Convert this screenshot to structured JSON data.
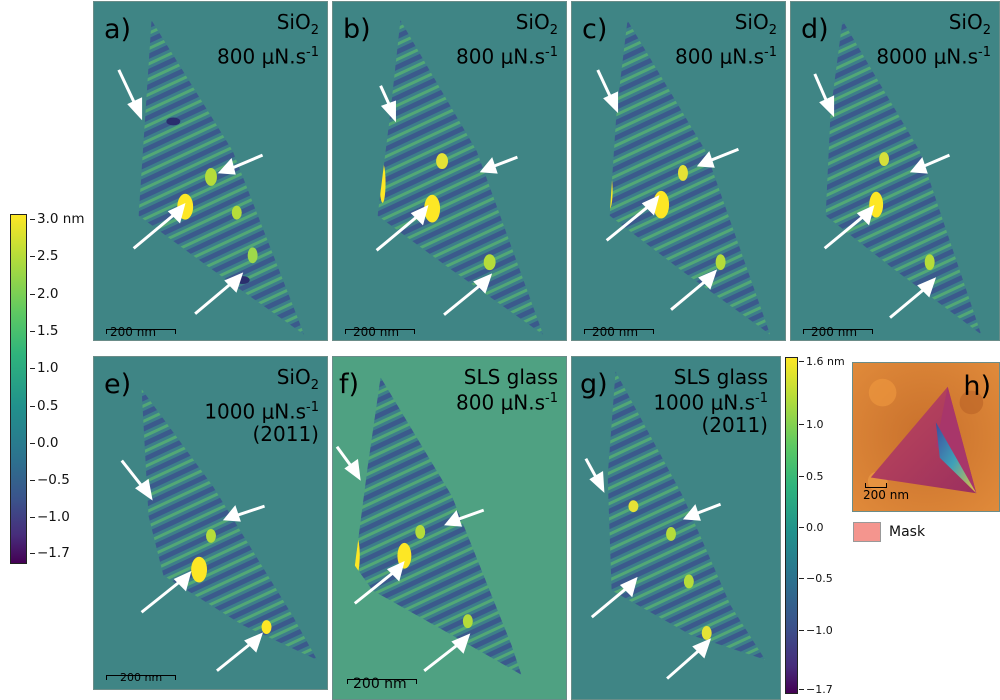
{
  "panels": [
    {
      "id": "a",
      "label": "a)",
      "line1": "SiO2",
      "sub": "2",
      "line1main": "SiO",
      "line2": "800 μN.s",
      "sup": "-1",
      "line3": "",
      "scale": "200 nm"
    },
    {
      "id": "b",
      "label": "b)",
      "line1main": "SiO",
      "sub": "2",
      "line2": "800 μN.s",
      "sup": "-1",
      "line3": "",
      "scale": "200 nm"
    },
    {
      "id": "c",
      "label": "c)",
      "line1main": "SiO",
      "sub": "2",
      "line2": "800 μN.s",
      "sup": "-1",
      "line3": "",
      "scale": "200 nm"
    },
    {
      "id": "d",
      "label": "d)",
      "line1main": "SiO",
      "sub": "2",
      "line2": "8000 μN.s",
      "sup": "-1",
      "line3": "",
      "scale": "200 nm"
    },
    {
      "id": "e",
      "label": "e)",
      "line1main": "SiO",
      "sub": "2",
      "line2": "1000 μN.s",
      "sup": "-1",
      "line3": "(2011)",
      "scale": "200 nm"
    },
    {
      "id": "f",
      "label": "f)",
      "line1main": "SLS glass",
      "sub": "",
      "line2": "800 μN.s",
      "sup": "-1",
      "line3": "",
      "scale": "200 nm"
    },
    {
      "id": "g",
      "label": "g)",
      "line1main": "SLS glass",
      "sub": "",
      "line2": "1000 μN.s",
      "sup": "-1",
      "line3": "(2011)",
      "scale": ""
    },
    {
      "id": "h",
      "label": "h)",
      "scale": "200 nm"
    }
  ],
  "colorbar_main": {
    "ticks": [
      "3.0 nm",
      "2.5",
      "2.0",
      "1.5",
      "1.0",
      "0.5",
      "0.0",
      "−0.5",
      "−1.0",
      "−1.7"
    ]
  },
  "colorbar_small": {
    "ticks": [
      "1.6 nm",
      "1.0",
      "0.5",
      "0.0",
      "−0.5",
      "−1.0",
      "−1.7"
    ]
  },
  "legend": {
    "label": "Mask"
  },
  "colors": {
    "background": "#3f8585",
    "background_light": "#4fa182",
    "high": "#fde725",
    "low": "#440154",
    "arrow": "#ffffff",
    "mask": "#f4958e",
    "afm_bg": "#d97a30"
  }
}
